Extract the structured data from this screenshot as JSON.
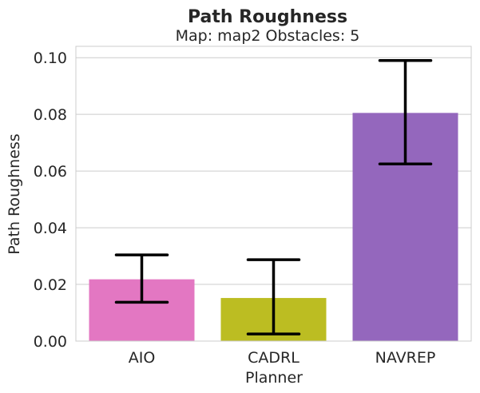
{
  "chart_data": {
    "type": "bar",
    "title": "Path Roughness",
    "subtitle": "Map: map2 Obstacles: 5",
    "xlabel": "Planner",
    "ylabel": "Path Roughness",
    "categories": [
      "AIO",
      "CADRL",
      "NAVREP"
    ],
    "values": [
      0.0218,
      0.0152,
      0.0805
    ],
    "error_low": [
      0.0137,
      0.0025,
      0.0625
    ],
    "error_high": [
      0.0304,
      0.0287,
      0.099
    ],
    "colors": [
      "#e377c2",
      "#bcbd22",
      "#9467bd"
    ],
    "ylim": [
      0,
      0.104
    ],
    "yticks": [
      0.0,
      0.02,
      0.04,
      0.06,
      0.08,
      0.1
    ],
    "ytick_labels": [
      "0.00",
      "0.02",
      "0.04",
      "0.06",
      "0.08",
      "0.10"
    ],
    "grid": "y",
    "legend": "none"
  }
}
